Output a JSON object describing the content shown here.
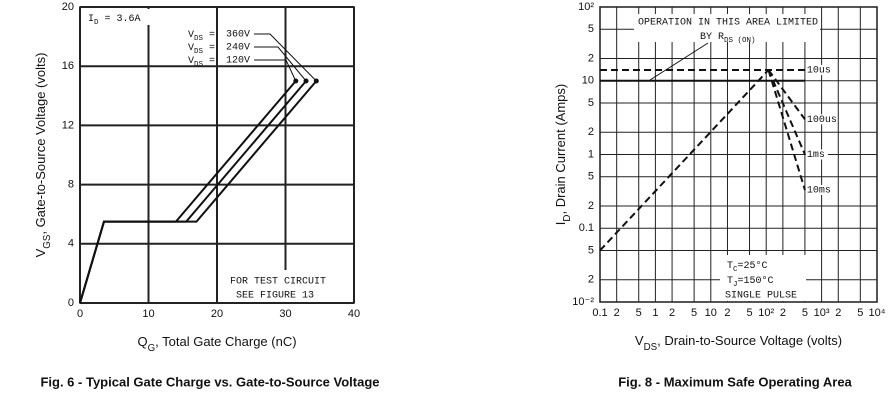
{
  "chart_data": [
    {
      "type": "line",
      "caption": "Fig. 6 - Typical Gate Charge vs. Gate-to-Source Voltage",
      "xlabel": [
        "Q",
        "G",
        ", Total Gate Charge (nC)"
      ],
      "ylabel": [
        "V",
        "GS",
        ", Gate-to-Source Voltage (volts)"
      ],
      "annotations": {
        "current": [
          "I",
          "D",
          " = 3.6A"
        ],
        "test1": "FOR TEST CIRCUIT",
        "test2": "SEE FIGURE 13"
      },
      "legend_prefix": [
        "V",
        "DS",
        " = "
      ],
      "xlim": [
        0,
        40
      ],
      "xticks": [
        0,
        10,
        20,
        30,
        40
      ],
      "ylim": [
        0,
        20
      ],
      "yticks": [
        0,
        4,
        8,
        12,
        16,
        20
      ],
      "grid": true,
      "series": [
        {
          "name": "360V",
          "color": "#111111",
          "x": [
            0,
            3.5,
            17,
            34.5
          ],
          "values": [
            0,
            5.5,
            5.5,
            15
          ]
        },
        {
          "name": "240V",
          "color": "#111111",
          "x": [
            0,
            3.5,
            15.5,
            33
          ],
          "values": [
            0,
            5.5,
            5.5,
            15
          ]
        },
        {
          "name": "120V",
          "color": "#111111",
          "x": [
            0,
            3.5,
            14,
            31.5
          ],
          "values": [
            0,
            5.5,
            5.5,
            15
          ]
        }
      ]
    },
    {
      "type": "line",
      "caption": "Fig. 8 - Maximum Safe Operating Area",
      "xlabel": [
        "V",
        "DS",
        ", Drain-to-Source Voltage (volts)"
      ],
      "ylabel": [
        "I",
        "D",
        ", Drain Current (Amps)"
      ],
      "annotations": {
        "limit1": "OPERATION IN THIS AREA LIMITED",
        "limit2": [
          "BY R",
          "DS (ON)"
        ],
        "tc": [
          "T",
          "C",
          "=25°C"
        ],
        "tj": [
          "T",
          "J",
          "=150°C"
        ],
        "pulse": "SINGLE PULSE"
      },
      "log_x": true,
      "log_y": true,
      "xlim": [
        0.1,
        10000
      ],
      "xticks": [
        {
          "value": 0.1,
          "label": "0.1"
        },
        {
          "value": 0.2,
          "label": "2"
        },
        {
          "value": 0.5,
          "label": "5"
        },
        1,
        {
          "value": 2,
          "label": "2"
        },
        {
          "value": 5,
          "label": "5"
        },
        10,
        {
          "value": 20,
          "label": "2"
        },
        {
          "value": 50,
          "label": "5"
        },
        {
          "value": 100,
          "label": "10²"
        },
        {
          "value": 200,
          "label": "2"
        },
        {
          "value": 500,
          "label": "5"
        },
        {
          "value": 1000,
          "label": "10³"
        },
        {
          "value": 2000,
          "label": "2"
        },
        {
          "value": 5000,
          "label": "5"
        },
        {
          "value": 10000,
          "label": "10⁴"
        }
      ],
      "ylim": [
        0.01,
        100
      ],
      "yticks": [
        {
          "value": 0.01,
          "label": "10⁻²"
        },
        {
          "value": 0.02,
          "label": "2"
        },
        {
          "value": 0.05,
          "label": "5"
        },
        0.1,
        {
          "value": 0.2,
          "label": "2"
        },
        {
          "value": 0.5,
          "label": "5"
        },
        1,
        {
          "value": 2,
          "label": "2"
        },
        {
          "value": 5,
          "label": "5"
        },
        10,
        {
          "value": 20,
          "label": "2"
        },
        {
          "value": 50,
          "label": "5"
        },
        {
          "value": 100,
          "label": "10²"
        }
      ],
      "grid": true,
      "series": [
        {
          "color": "#111111",
          "dash": true,
          "x": [
            0.1,
            110
          ],
          "values": [
            0.05,
            14
          ]
        },
        {
          "name": "10us",
          "color": "#111111",
          "dash": true,
          "x": [
            0.1,
            500
          ],
          "values": [
            14,
            14
          ]
        },
        {
          "name": "100us",
          "color": "#111111",
          "dash": true,
          "x": [
            110,
            500
          ],
          "values": [
            14,
            3
          ]
        },
        {
          "name": "1ms",
          "color": "#111111",
          "dash": true,
          "x": [
            110,
            500
          ],
          "values": [
            14,
            1
          ]
        },
        {
          "name": "10ms",
          "color": "#111111",
          "dash": true,
          "x": [
            110,
            500
          ],
          "values": [
            14,
            0.33
          ]
        },
        {
          "color": "#111111",
          "x": [
            0.1,
            500
          ],
          "values": [
            10,
            10
          ]
        }
      ]
    }
  ]
}
